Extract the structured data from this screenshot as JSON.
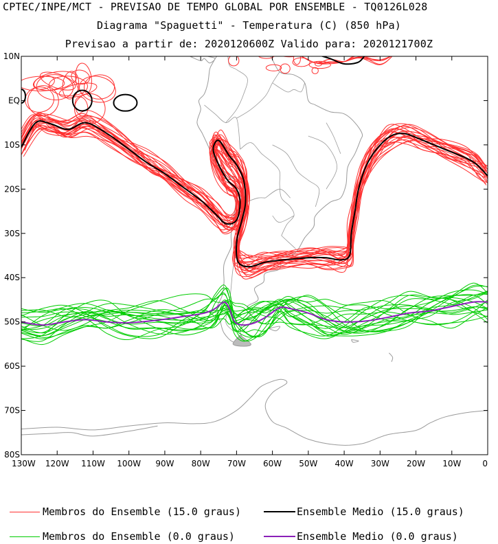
{
  "header": {
    "line1": "CPTEC/INPE/MCT - PREVISAO DE TEMPO GLOBAL POR ENSEMBLE - TQ0126L028",
    "line2": "Diagrama \"Spaguetti\" - Temperatura (C) (850 hPa)",
    "line3": "Previsao a partir de: 2020120600Z  Valido para: 2020121700Z"
  },
  "axes": {
    "lat_labels": [
      "10N",
      "EQ",
      "10S",
      "20S",
      "30S",
      "40S",
      "50S",
      "60S",
      "70S",
      "80S"
    ],
    "lat_values": [
      10,
      0,
      -10,
      -20,
      -30,
      -40,
      -50,
      -60,
      -70,
      -80
    ],
    "lon_labels": [
      "130W",
      "120W",
      "110W",
      "100W",
      "90W",
      "80W",
      "70W",
      "60W",
      "50W",
      "40W",
      "30W",
      "20W",
      "10W",
      "0"
    ],
    "lon_values": [
      -130,
      -120,
      -110,
      -100,
      -90,
      -80,
      -70,
      -60,
      -50,
      -40,
      -30,
      -20,
      -10,
      0
    ],
    "lon_range": [
      -130,
      0
    ],
    "lat_range": [
      -80,
      10
    ]
  },
  "colors": {
    "member15": "#ff3030",
    "mean15": "#000000",
    "member0": "#00cc00",
    "mean0": "#8a1fb8",
    "coast": "#9a9a9a"
  },
  "legend": {
    "member15": "Membros do Ensemble (15.0 graus)",
    "mean15": "Ensemble Medio (15.0 graus)",
    "member0": "Membros do Ensemble (0.0 graus)",
    "mean0": "Ensemble Medio (0.0 graus)"
  },
  "chart_data": {
    "type": "map-contour",
    "variable": "Temperatura (C) (850 hPa)",
    "series": [
      {
        "name": "Ensemble Medio (15.0 graus)",
        "points_lonlat": [
          [
            -130,
            -10.5
          ],
          [
            -126,
            -5
          ],
          [
            -122,
            -5.2
          ],
          [
            -117,
            -6.5
          ],
          [
            -112,
            -5
          ],
          [
            -106,
            -7.5
          ],
          [
            -100,
            -11
          ],
          [
            -95,
            -14
          ],
          [
            -90,
            -16.5
          ],
          [
            -85,
            -19.5
          ],
          [
            -80,
            -22.5
          ],
          [
            -76,
            -25.5
          ],
          [
            -73,
            -27.8
          ],
          [
            -70,
            -27
          ],
          [
            -69,
            -23
          ],
          [
            -70,
            -20
          ],
          [
            -72.5,
            -18
          ],
          [
            -75,
            -14.5
          ],
          [
            -76.5,
            -11
          ],
          [
            -75,
            -9
          ],
          [
            -72,
            -12.5
          ],
          [
            -70,
            -14.5
          ],
          [
            -68,
            -18
          ],
          [
            -67.5,
            -23
          ],
          [
            -68.5,
            -27
          ],
          [
            -69.8,
            -31
          ],
          [
            -70,
            -35
          ],
          [
            -69,
            -37
          ],
          [
            -66,
            -37.5
          ],
          [
            -62,
            -36.5
          ],
          [
            -57,
            -36
          ],
          [
            -50,
            -35.5
          ],
          [
            -45,
            -35.5
          ],
          [
            -41,
            -36
          ],
          [
            -38.5,
            -35
          ],
          [
            -38,
            -30
          ],
          [
            -37,
            -25
          ],
          [
            -36,
            -20
          ],
          [
            -34,
            -15
          ],
          [
            -31,
            -11
          ],
          [
            -27,
            -8
          ],
          [
            -23,
            -7.5
          ],
          [
            -18,
            -9
          ],
          [
            -12,
            -11
          ],
          [
            -6,
            -13
          ],
          [
            -3,
            -14.5
          ],
          [
            0,
            -17
          ]
        ]
      },
      {
        "name": "Ensemble Medio (0.0 graus)",
        "points_lonlat": [
          [
            -130,
            -50
          ],
          [
            -124,
            -50.7
          ],
          [
            -118,
            -50
          ],
          [
            -112,
            -49.5
          ],
          [
            -106,
            -50
          ],
          [
            -100,
            -50.2
          ],
          [
            -92,
            -49.6
          ],
          [
            -85,
            -48.8
          ],
          [
            -79,
            -48
          ],
          [
            -76,
            -47
          ],
          [
            -73.5,
            -45.5
          ],
          [
            -72,
            -47
          ],
          [
            -70.5,
            -50
          ],
          [
            -68,
            -50.7
          ],
          [
            -65,
            -50.2
          ],
          [
            -62,
            -49
          ],
          [
            -58,
            -46.8
          ],
          [
            -55,
            -47
          ],
          [
            -50,
            -48
          ],
          [
            -45,
            -49.5
          ],
          [
            -40,
            -50
          ],
          [
            -34,
            -49.8
          ],
          [
            -28,
            -49
          ],
          [
            -22,
            -48
          ],
          [
            -16,
            -47.5
          ],
          [
            -10,
            -46.5
          ],
          [
            -4,
            -45.5
          ],
          [
            0,
            -45.5
          ]
        ]
      }
    ]
  }
}
